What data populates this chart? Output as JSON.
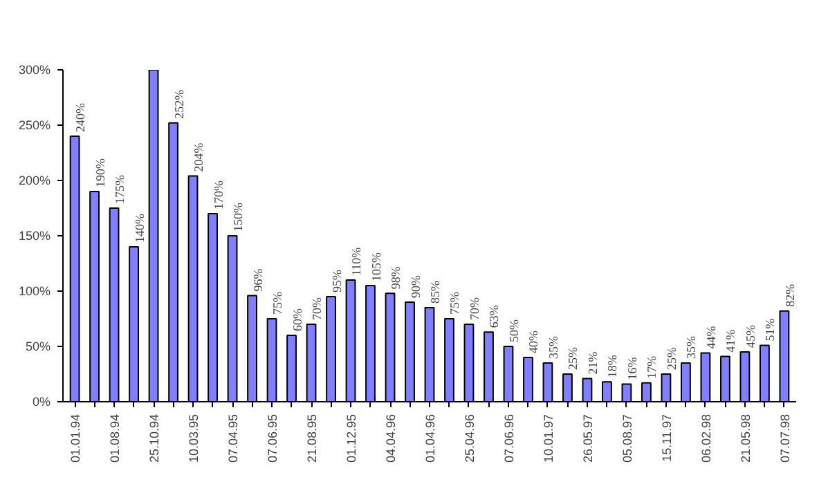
{
  "chart_data": {
    "type": "bar",
    "categories": [
      "01.01.94",
      null,
      "01.08.94",
      null,
      "25.10.94",
      null,
      "10.03.95",
      null,
      "07.04.95",
      null,
      "07.06.95",
      null,
      "21.08.95",
      null,
      "01.12.95",
      null,
      "04.04.96",
      null,
      "01.04.96",
      null,
      "25.04.96",
      null,
      "07.06.96",
      null,
      "10.01.97",
      null,
      "26.05.97",
      null,
      "05.08.97",
      null,
      "15.11.97",
      null,
      "06.02.98",
      null,
      "21.05.98",
      null,
      "07.07.98"
    ],
    "values": [
      240,
      190,
      175,
      140,
      300,
      252,
      204,
      170,
      150,
      96,
      75,
      60,
      70,
      95,
      110,
      105,
      98,
      90,
      85,
      75,
      70,
      63,
      50,
      40,
      35,
      25,
      21,
      18,
      16,
      17,
      25,
      35,
      44,
      41,
      45,
      51,
      82
    ],
    "value_labels": [
      "240%",
      "190%",
      "175%",
      "140%",
      null,
      "252%",
      "204%",
      "170%",
      "150%",
      "96%",
      "75%",
      "60%",
      "70%",
      "95%",
      "110%",
      "105%",
      "98%",
      "90%",
      "85%",
      "75%",
      "70%",
      "63%",
      "50%",
      "40%",
      "35%",
      "25%",
      "21%",
      "18%",
      "16%",
      "17%",
      "25%",
      "35%",
      "44%",
      "41%",
      "45%",
      "51%",
      "82%"
    ],
    "color": "#8080ff",
    "ylim": [
      0,
      300
    ],
    "yticks": [
      {
        "value": 0,
        "label": "0%"
      },
      {
        "value": 50,
        "label": "50%"
      },
      {
        "value": 100,
        "label": "100%"
      },
      {
        "value": 150,
        "label": "150%"
      },
      {
        "value": 200,
        "label": "200%"
      },
      {
        "value": 250,
        "label": "250%"
      },
      {
        "value": 300,
        "label": "300%"
      }
    ],
    "grid": false
  }
}
